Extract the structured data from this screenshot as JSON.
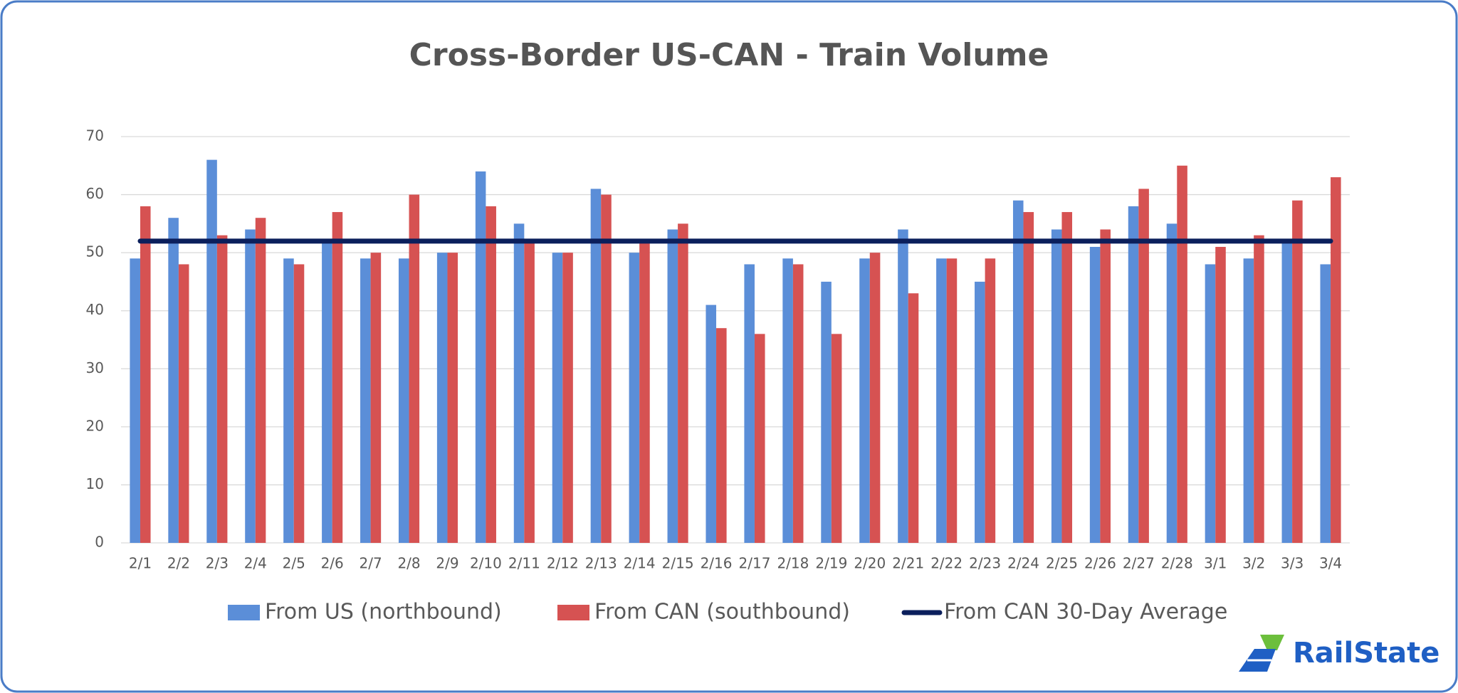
{
  "chart_data": {
    "type": "bar",
    "title": "Cross-Border US-CAN - Train Volume",
    "categories": [
      "2/1",
      "2/2",
      "2/3",
      "2/4",
      "2/5",
      "2/6",
      "2/7",
      "2/8",
      "2/9",
      "2/10",
      "2/11",
      "2/12",
      "2/13",
      "2/14",
      "2/15",
      "2/16",
      "2/17",
      "2/18",
      "2/19",
      "2/20",
      "2/21",
      "2/22",
      "2/23",
      "2/24",
      "2/25",
      "2/26",
      "2/27",
      "2/28",
      "3/1",
      "3/2",
      "3/3",
      "3/4"
    ],
    "series": [
      {
        "name": "From US (northbound)",
        "type": "bar",
        "color": "#5b8ed8",
        "values": [
          49,
          56,
          66,
          54,
          49,
          52,
          49,
          49,
          50,
          64,
          55,
          50,
          61,
          50,
          54,
          41,
          48,
          49,
          45,
          49,
          54,
          49,
          45,
          59,
          54,
          51,
          58,
          55,
          48,
          49,
          52,
          48
        ]
      },
      {
        "name": "From CAN (southbound)",
        "type": "bar",
        "color": "#d65252",
        "values": [
          58,
          48,
          53,
          56,
          48,
          57,
          50,
          60,
          50,
          58,
          52,
          50,
          60,
          52,
          55,
          37,
          36,
          48,
          36,
          50,
          43,
          49,
          49,
          57,
          57,
          54,
          61,
          65,
          51,
          53,
          59,
          63
        ]
      },
      {
        "name": "From CAN 30-Day Average",
        "type": "line",
        "color": "#0b1f5c",
        "values": [
          52,
          52,
          52,
          52,
          52,
          52,
          52,
          52,
          52,
          52,
          52,
          52,
          52,
          52,
          52,
          52,
          52,
          52,
          52,
          52,
          52,
          52,
          52,
          52,
          52,
          52,
          52,
          52,
          52,
          52,
          52,
          52
        ]
      }
    ],
    "ylim": [
      0,
      70
    ],
    "yticks": [
      0,
      10,
      20,
      30,
      40,
      50,
      60,
      70
    ],
    "grid": true,
    "legend": "bottom"
  },
  "logo": {
    "text": "RailState"
  }
}
